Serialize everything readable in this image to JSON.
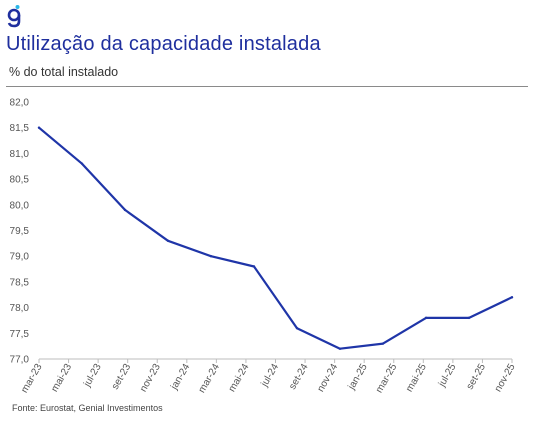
{
  "header": {
    "title": "Utilização da capacidade instalada",
    "subtitle": "% do total instalado"
  },
  "footer": {
    "source": "Fonte: Eurostat, Genial Investimentos"
  },
  "brand": {
    "logo_icon": "genial-g-logo-icon",
    "accent_color": "#1f2f9e",
    "logo_dot_color": "#29b6e8"
  },
  "chart_data": {
    "type": "line",
    "title": "Utilização da capacidade instalada",
    "ylabel": "% do total instalado",
    "xlabel": "",
    "ylim": [
      77.0,
      82.0
    ],
    "yticks": [
      82.0,
      81.5,
      81.0,
      80.5,
      80.0,
      79.5,
      79.0,
      78.5,
      78.0,
      77.5,
      77.0
    ],
    "ytick_labels": [
      "82,0",
      "81,5",
      "81,0",
      "80,5",
      "80,0",
      "79,5",
      "79,0",
      "78,5",
      "78,0",
      "77,5",
      "77,0"
    ],
    "categories": [
      "mar-23",
      "mai-23",
      "jul-23",
      "set-23",
      "nov-23",
      "jan-24",
      "mar-24",
      "mai-24",
      "jul-24",
      "set-24",
      "nov-24",
      "jan-25",
      "mar-25",
      "mai-25",
      "jul-25",
      "set-25",
      "nov-25"
    ],
    "x": [
      "mar-23",
      "jun-23",
      "set-23",
      "dez-23",
      "mar-24",
      "jun-24",
      "set-24",
      "dez-24",
      "mar-25",
      "jun-25",
      "set-25",
      "dez-25"
    ],
    "values": [
      81.5,
      80.8,
      79.9,
      79.3,
      79.0,
      78.8,
      77.6,
      77.2,
      77.3,
      77.8,
      77.8,
      78.2
    ],
    "grid": false,
    "legend": "none",
    "line_color": "#1f35a8"
  }
}
